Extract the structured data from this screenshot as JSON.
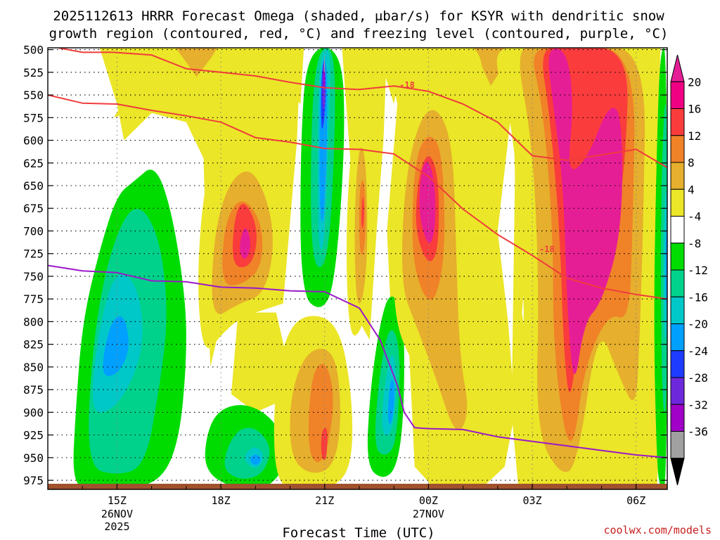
{
  "chart_data": {
    "type": "heatmap",
    "title_line1": "2025112613 HRRR Forecast Omega (shaded, μbar/s) for KSYR with dendritic snow",
    "title_line2": "growth region (contoured, red, °C) and freezing level (contoured, purple, °C)",
    "xlabel": "Forecast Time (UTC)",
    "ylabel": "",
    "y_scale": "pressure (hPa), top = 500",
    "ylim": [
      985,
      498
    ],
    "y_ticks": [
      "500",
      "525",
      "550",
      "575",
      "600",
      "625",
      "650",
      "675",
      "700",
      "725",
      "750",
      "775",
      "800",
      "825",
      "850",
      "875",
      "900",
      "925",
      "950",
      "975"
    ],
    "x_ticks": [
      {
        "label": "15Z",
        "sub1": "26NOV",
        "sub2": "2025",
        "hour": 15
      },
      {
        "label": "18Z",
        "sub1": "",
        "sub2": "",
        "hour": 18
      },
      {
        "label": "21Z",
        "sub1": "",
        "sub2": "",
        "hour": 21
      },
      {
        "label": "00Z",
        "sub1": "27NOV",
        "sub2": "",
        "hour": 24
      },
      {
        "label": "03Z",
        "sub1": "",
        "sub2": "",
        "hour": 27
      },
      {
        "label": "06Z",
        "sub1": "",
        "sub2": "",
        "hour": 30
      }
    ],
    "xlim_hours": [
      13.0,
      30.9
    ],
    "grid": true,
    "colorbar": {
      "labels": [
        "20",
        "16",
        "12",
        "8",
        "4",
        "-4",
        "-8",
        "-12",
        "-16",
        "-20",
        "-24",
        "-28",
        "-32",
        "-36"
      ],
      "levels": [
        -36,
        -32,
        -28,
        -24,
        -20,
        -16,
        -12,
        -8,
        -4,
        4,
        8,
        12,
        16,
        20
      ],
      "colors": [
        "#000000",
        "#a0a0a0",
        "#a000c8",
        "#6e28dc",
        "#1e3cff",
        "#00a0ff",
        "#00c8c8",
        "#00d28c",
        "#00dc00",
        "#ffffff",
        "#ebe628",
        "#e6af2d",
        "#f08228",
        "#fa3c3c",
        "#f00082",
        "#e61e96"
      ]
    },
    "omega_regions": [
      {
        "name": "west-descent",
        "hour": 15.5,
        "p": 790,
        "levels": [
          -4,
          -8,
          -12,
          -16
        ]
      },
      {
        "name": "surface-descent-18z",
        "hour": 18.7,
        "p": 945,
        "levels": [
          -4,
          -8,
          -12,
          -16
        ]
      },
      {
        "name": "ascent-18z",
        "hour": 18.5,
        "p": 700,
        "levels": [
          4,
          8,
          12,
          16,
          20
        ]
      },
      {
        "name": "descent-column-21z",
        "hour": 21.0,
        "p": 610,
        "levels": [
          -4,
          -8,
          -12,
          -16,
          -20,
          -24,
          -28,
          -32
        ]
      },
      {
        "name": "ascent-21z-lower",
        "hour": 21.0,
        "p": 870,
        "levels": [
          4,
          8,
          12,
          16
        ]
      },
      {
        "name": "ascent-22z",
        "hour": 22.2,
        "p": 680,
        "levels": [
          4,
          8,
          12,
          16
        ]
      },
      {
        "name": "descent-23z",
        "hour": 22.9,
        "p": 880,
        "levels": [
          -4,
          -8,
          -12,
          -16
        ]
      },
      {
        "name": "ascent-00z",
        "hour": 23.9,
        "p": 650,
        "levels": [
          4,
          8,
          12,
          16,
          20
        ]
      },
      {
        "name": "ascent-03z-06z",
        "hour": 28.5,
        "p": 700,
        "levels": [
          4,
          8,
          12,
          16,
          20
        ]
      },
      {
        "name": "descent-edge-07z",
        "hour": 30.7,
        "p": 780,
        "levels": [
          -4,
          -8,
          -12,
          -16
        ]
      }
    ],
    "series": [
      {
        "name": "",
        "color": "#f03c3c",
        "label": "-18",
        "x": [
          13.3,
          14.0,
          14.9,
          16.0,
          17.0,
          18.0,
          19.0,
          20.0,
          21.0,
          22.0,
          23.0,
          24.0,
          25.0,
          26.0,
          27.0,
          28.0,
          29.0,
          30.0,
          30.9
        ],
        "y": [
          498,
          503,
          503,
          506,
          521,
          525,
          529,
          536,
          542,
          544,
          540,
          546,
          560,
          580,
          617,
          622,
          616,
          610,
          630
        ]
      },
      {
        "name": "",
        "color": "#f03c3c",
        "label": "-18",
        "x": [
          13.0,
          14.0,
          15.0,
          16.0,
          17.0,
          18.0,
          19.0,
          20.0,
          21.0,
          22.0,
          23.0,
          24.0,
          25.0,
          26.0,
          27.0,
          28.0,
          29.0,
          30.0,
          30.9
        ],
        "y": [
          550,
          559,
          560,
          567,
          573,
          580,
          597,
          602,
          609,
          610,
          615,
          640,
          676,
          704,
          727,
          752,
          763,
          770,
          775
        ]
      },
      {
        "name": "",
        "color": "#9b19c8",
        "label": "",
        "x": [
          13.0,
          14.0,
          15.0,
          16.0,
          17.0,
          18.0,
          19.0,
          20.0,
          21.0,
          22.0,
          22.6,
          23.1,
          23.3,
          23.6,
          24.0,
          25.0,
          26.0,
          27.0,
          28.0,
          29.0,
          30.0,
          30.9
        ],
        "y": [
          738,
          744,
          746,
          755,
          756,
          762,
          763,
          766,
          767,
          785,
          820,
          870,
          900,
          917,
          918,
          919,
          927,
          932,
          937,
          942,
          947,
          950
        ]
      }
    ]
  },
  "credit": "coolwx.com/models",
  "credit_color": "#c81e1e",
  "ground_color": "#a0522d"
}
